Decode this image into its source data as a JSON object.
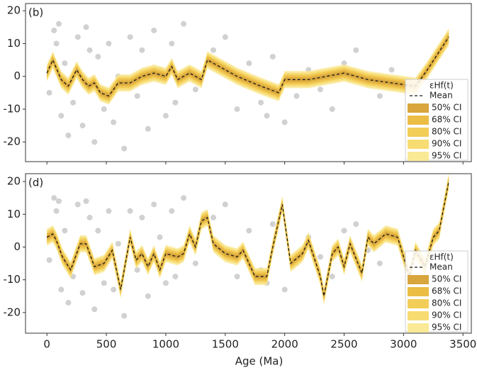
{
  "chart_data": [
    {
      "type": "line",
      "panel_label": "(b)",
      "xlim": [
        -180,
        3570
      ],
      "ylim": [
        -26,
        22.2
      ],
      "xticks": [
        0,
        500,
        1000,
        1500,
        2000,
        2500,
        3000,
        3500
      ],
      "yticks": [
        -20,
        -10,
        0,
        10,
        20
      ],
      "points": {
        "name": "εHf(t)",
        "color": "#9a9a9a",
        "x": [
          20,
          60,
          80,
          100,
          120,
          150,
          180,
          220,
          260,
          300,
          330,
          360,
          400,
          430,
          480,
          520,
          560,
          600,
          650,
          700,
          760,
          800,
          850,
          900,
          950,
          1000,
          1050,
          1080,
          1150,
          1250,
          1400,
          1500,
          1600,
          1700,
          1800,
          1850,
          1900,
          2000,
          2100,
          2200,
          2300,
          2400,
          2500,
          2600,
          2700,
          2800,
          2900,
          3000
        ],
        "y": [
          -5,
          14,
          10,
          16,
          -12,
          4,
          -18,
          -8,
          12,
          -15,
          15,
          8,
          -20,
          6,
          -10,
          10,
          -14,
          0,
          -22,
          12,
          -6,
          8,
          -16,
          14,
          2,
          -12,
          10,
          -8,
          16,
          -4,
          8,
          12,
          -10,
          4,
          -8,
          -12,
          6,
          -14,
          -6,
          2,
          -4,
          -10,
          4,
          8,
          -2,
          -6,
          2,
          -4
        ]
      },
      "mean": {
        "name": "Mean",
        "color": "#1a1a1a",
        "x": [
          0,
          50,
          120,
          180,
          250,
          300,
          350,
          400,
          450,
          520,
          600,
          700,
          800,
          900,
          1000,
          1050,
          1100,
          1200,
          1300,
          1350,
          1400,
          1600,
          1800,
          1950,
          2000,
          2200,
          2500,
          2700,
          2900,
          3100,
          3200,
          3380
        ],
        "values": [
          1,
          5,
          -1,
          -3,
          2,
          -1,
          -3,
          -2,
          -5,
          -6,
          -2,
          -2,
          0,
          1,
          0,
          3,
          -1,
          1,
          -1,
          5,
          4,
          0,
          -3,
          -5,
          -1,
          -1,
          1,
          -1,
          -2,
          -3,
          2,
          12
        ]
      },
      "ci": [
        {
          "name": "95% CI",
          "color": "#fae996",
          "halfwidth": 2.6
        },
        {
          "name": "90% CI",
          "color": "#f7dc72",
          "halfwidth": 2.1
        },
        {
          "name": "80% CI",
          "color": "#f2cd58",
          "halfwidth": 1.6
        },
        {
          "name": "68% CI",
          "color": "#ebbd45",
          "halfwidth": 1.2
        },
        {
          "name": "50% CI",
          "color": "#d8a63c",
          "halfwidth": 0.7
        }
      ]
    },
    {
      "type": "line",
      "panel_label": "(d)",
      "xlim": [
        -180,
        3570
      ],
      "ylim": [
        -26.3,
        22.4
      ],
      "xticks": [
        0,
        500,
        1000,
        1500,
        2000,
        2500,
        3000,
        3500
      ],
      "yticks": [
        -20,
        -10,
        0,
        10,
        20
      ],
      "xlabel": "Age (Ma)",
      "points": {
        "name": "εHf(t)",
        "color": "#9a9a9a",
        "x": [
          20,
          60,
          80,
          100,
          120,
          150,
          180,
          220,
          260,
          300,
          330,
          360,
          400,
          430,
          480,
          520,
          560,
          600,
          650,
          700,
          760,
          800,
          850,
          900,
          950,
          1000,
          1050,
          1080,
          1150,
          1250,
          1400,
          1500,
          1600,
          1700,
          1800,
          1850,
          1900,
          2000,
          2100,
          2200,
          2300,
          2400,
          2500,
          2600,
          2700,
          2800,
          2900,
          3000
        ],
        "y": [
          -4,
          15,
          11,
          14,
          -13,
          5,
          -17,
          -9,
          13,
          -14,
          14,
          9,
          -19,
          5,
          -11,
          11,
          -13,
          1,
          -21,
          11,
          -7,
          9,
          -15,
          13,
          3,
          -11,
          11,
          -9,
          15,
          -5,
          9,
          13,
          -9,
          5,
          -7,
          -11,
          7,
          -13,
          -5,
          3,
          -3,
          -9,
          5,
          7,
          -1,
          -5,
          3,
          -3
        ]
      },
      "mean": {
        "name": "Mean",
        "color": "#1a1a1a",
        "x": [
          0,
          50,
          80,
          130,
          200,
          280,
          330,
          400,
          480,
          550,
          620,
          650,
          700,
          750,
          800,
          850,
          900,
          950,
          1000,
          1100,
          1150,
          1200,
          1250,
          1300,
          1350,
          1400,
          1500,
          1600,
          1650,
          1750,
          1850,
          1900,
          1980,
          2050,
          2150,
          2200,
          2300,
          2330,
          2400,
          2450,
          2500,
          2550,
          2650,
          2700,
          2750,
          2850,
          2950,
          3050,
          3100,
          3180,
          3250,
          3300,
          3380
        ],
        "values": [
          3,
          4,
          2,
          -3,
          -7,
          1,
          1,
          -6,
          -5,
          -1,
          -13,
          -7,
          3,
          -4,
          -2,
          -6,
          -2,
          -7,
          -2,
          -3,
          -2,
          4,
          0,
          8,
          9,
          1,
          -2,
          -3,
          -1,
          -9,
          -9,
          0,
          13,
          -5,
          -2,
          2,
          -9,
          -15,
          -2,
          0,
          -6,
          1,
          -8,
          3,
          1,
          4,
          3,
          -9,
          -1,
          -6,
          3,
          5,
          20
        ]
      },
      "ci": [
        {
          "name": "95% CI",
          "color": "#fae996",
          "halfwidth": 2.6
        },
        {
          "name": "90% CI",
          "color": "#f7dc72",
          "halfwidth": 2.1
        },
        {
          "name": "80% CI",
          "color": "#f2cd58",
          "halfwidth": 1.6
        },
        {
          "name": "68% CI",
          "color": "#ebbd45",
          "halfwidth": 1.2
        },
        {
          "name": "50% CI",
          "color": "#d8a63c",
          "halfwidth": 0.7
        }
      ]
    }
  ]
}
